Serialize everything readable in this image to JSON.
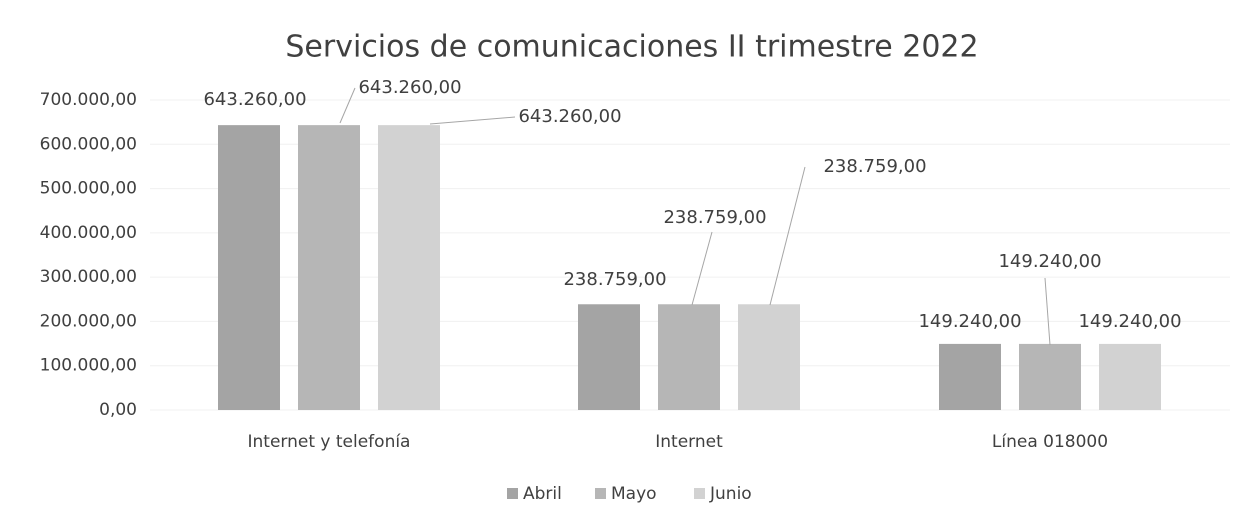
{
  "chart_data": {
    "type": "bar",
    "title": "Servicios de comunicaciones II trimestre 2022",
    "categories": [
      "Internet y telefonía",
      "Internet",
      "Línea 018000"
    ],
    "series": [
      {
        "name": "Abril",
        "color": "#a4a4a4",
        "values": [
          643260,
          238759,
          149240
        ],
        "value_labels": [
          "643.260,00",
          "238.759,00",
          "149.240,00"
        ]
      },
      {
        "name": "Mayo",
        "color": "#b6b6b6",
        "values": [
          643260,
          238759,
          149240
        ],
        "value_labels": [
          "643.260,00",
          "238.759,00",
          "149.240,00"
        ]
      },
      {
        "name": "Junio",
        "color": "#d2d2d2",
        "values": [
          643260,
          238759,
          149240
        ],
        "value_labels": [
          "643.260,00",
          "238.759,00",
          "149.240,00"
        ]
      }
    ],
    "ylim": [
      0,
      700000
    ],
    "yticks": [
      {
        "value": 0,
        "label": "0,00"
      },
      {
        "value": 100000,
        "label": "100.000,00"
      },
      {
        "value": 200000,
        "label": "200.000,00"
      },
      {
        "value": 300000,
        "label": "300.000,00"
      },
      {
        "value": 400000,
        "label": "400.000,00"
      },
      {
        "value": 500000,
        "label": "500.000,00"
      },
      {
        "value": 600000,
        "label": "600.000,00"
      },
      {
        "value": 700000,
        "label": "700.000,00"
      }
    ],
    "grid": true,
    "legend": "bottom"
  }
}
